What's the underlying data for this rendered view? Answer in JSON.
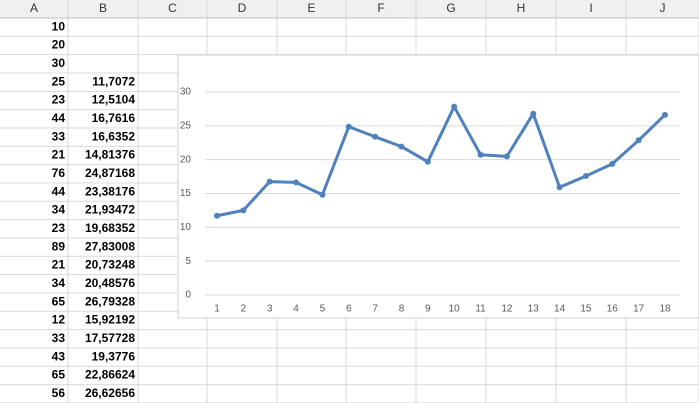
{
  "sheet": {
    "columns": [
      "A",
      "B",
      "C",
      "D",
      "E",
      "F",
      "G",
      "H",
      "I",
      "J"
    ],
    "rows": [
      {
        "a": "10"
      },
      {
        "a": "20"
      },
      {
        "a": "30"
      },
      {
        "a": "25",
        "b": "11,7072"
      },
      {
        "a": "23",
        "b": "12,5104"
      },
      {
        "a": "44",
        "b": "16,7616"
      },
      {
        "a": "33",
        "b": "16,6352"
      },
      {
        "a": "21",
        "b": "14,81376"
      },
      {
        "a": "76",
        "b": "24,87168"
      },
      {
        "a": "44",
        "b": "23,38176"
      },
      {
        "a": "34",
        "b": "21,93472"
      },
      {
        "a": "23",
        "b": "19,68352"
      },
      {
        "a": "89",
        "b": "27,83008"
      },
      {
        "a": "21",
        "b": "20,73248"
      },
      {
        "a": "34",
        "b": "20,48576"
      },
      {
        "a": "65",
        "b": "26,79328"
      },
      {
        "a": "12",
        "b": "15,92192"
      },
      {
        "a": "33",
        "b": "17,57728"
      },
      {
        "a": "43",
        "b": "19,3776"
      },
      {
        "a": "65",
        "b": "22,86624"
      },
      {
        "a": "56",
        "b": "26,62656"
      }
    ]
  },
  "chart_data": {
    "type": "line",
    "categories": [
      1,
      2,
      3,
      4,
      5,
      6,
      7,
      8,
      9,
      10,
      11,
      12,
      13,
      14,
      15,
      16,
      17,
      18
    ],
    "values": [
      11.7072,
      12.5104,
      16.7616,
      16.6352,
      14.81376,
      24.87168,
      23.38176,
      21.93472,
      19.68352,
      27.83008,
      20.73248,
      20.48576,
      26.79328,
      15.92192,
      17.57728,
      19.3776,
      22.86624,
      26.62656
    ],
    "color": "#4f81bd",
    "ylim": [
      0,
      30
    ],
    "yticks": [
      0,
      5,
      10,
      15,
      20,
      25,
      30
    ],
    "grid": true
  }
}
